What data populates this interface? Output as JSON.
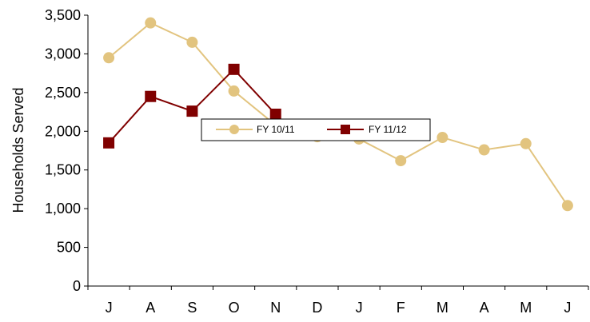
{
  "chart_data": {
    "type": "line",
    "categories": [
      "J",
      "A",
      "S",
      "O",
      "N",
      "D",
      "J",
      "F",
      "M",
      "A",
      "M",
      "J"
    ],
    "ylabel": "Households Served",
    "ylim": [
      0,
      3500
    ],
    "yticks": [
      "0",
      "500",
      "1,000",
      "1,500",
      "2,000",
      "2,500",
      "3,000",
      "3,500"
    ],
    "grid": false,
    "legend_position": "center",
    "series": [
      {
        "name": "FY 10/11",
        "color": "#E2C47F",
        "marker": "circle",
        "values": [
          2950,
          3400,
          3150,
          2520,
          2080,
          1930,
          1900,
          1620,
          1920,
          1760,
          1840,
          1040
        ]
      },
      {
        "name": "FY 11/12",
        "color": "#800000",
        "marker": "square",
        "values": [
          1850,
          2450,
          2260,
          2800,
          2220,
          null,
          null,
          null,
          null,
          null,
          null,
          null
        ]
      }
    ]
  }
}
